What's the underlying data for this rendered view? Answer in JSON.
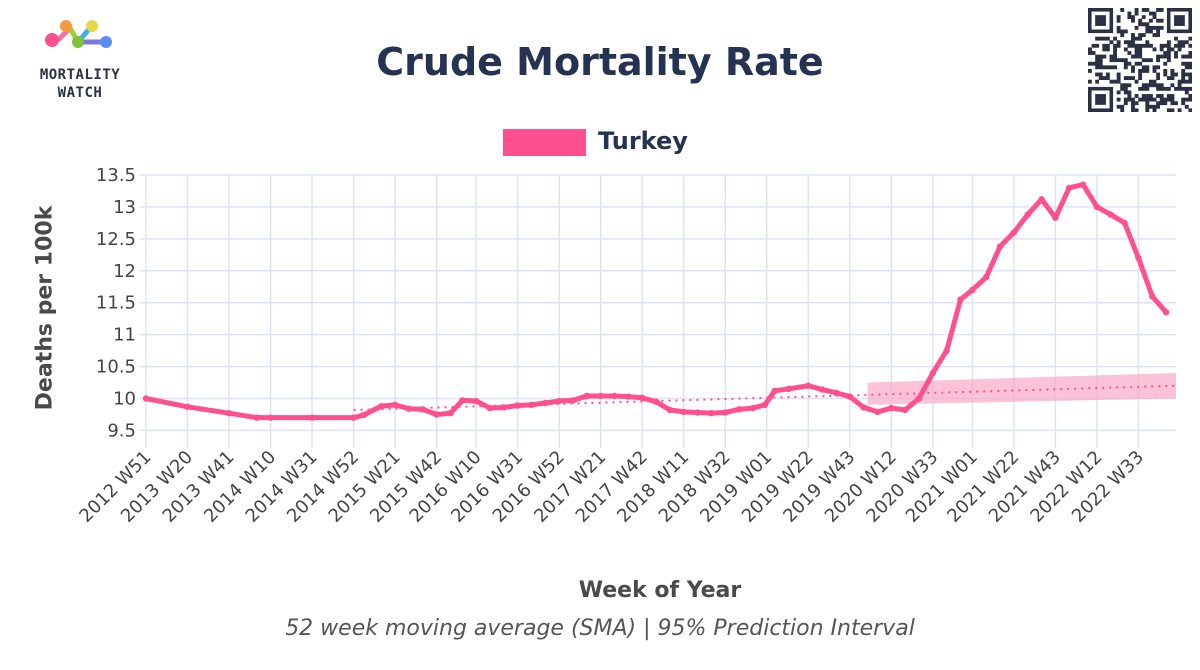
{
  "brand": {
    "logo_text_line1": "MORTALITY",
    "logo_text_line2": "WATCH"
  },
  "colors": {
    "series": "#ff4f8e",
    "band": "#f9a8c8",
    "grid": "#dde3f4",
    "title": "#253353"
  },
  "chart_data": {
    "type": "line",
    "title": "Crude Mortality Rate",
    "subtitle": "52 week moving average (SMA) | 95% Prediction Interval",
    "xlabel": "Week of Year",
    "ylabel": "Deaths per 100k",
    "ylim": [
      9.35,
      13.5
    ],
    "y_ticks": [
      "9.5",
      "10",
      "10.5",
      "11",
      "11.5",
      "12",
      "12.5",
      "13",
      "13.5"
    ],
    "y_tick_values": [
      9.5,
      10,
      10.5,
      11,
      11.5,
      12,
      12.5,
      13,
      13.5
    ],
    "x_ticks": [
      "2012 W51",
      "2013 W20",
      "2013 W41",
      "2014 W10",
      "2014 W31",
      "2014 W52",
      "2015 W21",
      "2015 W42",
      "2016 W10",
      "2016 W31",
      "2016 W52",
      "2017 W21",
      "2017 W42",
      "2018 W11",
      "2018 W32",
      "2019 W01",
      "2019 W22",
      "2019 W43",
      "2020 W12",
      "2020 W33",
      "2021 W01",
      "2021 W22",
      "2021 W43",
      "2022 W12",
      "2022 W33"
    ],
    "grid": true,
    "legend": {
      "position": "top-center",
      "entries": [
        "Turkey"
      ]
    },
    "series": [
      {
        "name": "Turkey",
        "x": [
          "2012 W51",
          "2013 W20",
          "2013 W41",
          "2014 W03",
          "2014 W10",
          "2014 W31",
          "2014 W52",
          "2015 W05",
          "2015 W14",
          "2015 W21",
          "2015 W28",
          "2015 W35",
          "2015 W42",
          "2015 W49",
          "2016 W03",
          "2016 W10",
          "2016 W17",
          "2016 W24",
          "2016 W31",
          "2016 W38",
          "2016 W45",
          "2016 W52",
          "2017 W07",
          "2017 W14",
          "2017 W21",
          "2017 W28",
          "2017 W35",
          "2017 W42",
          "2017 W49",
          "2018 W04",
          "2018 W11",
          "2018 W18",
          "2018 W25",
          "2018 W32",
          "2018 W39",
          "2018 W46",
          "2018 W52",
          "2019 W05",
          "2019 W12",
          "2019 W22",
          "2019 W29",
          "2019 W36",
          "2019 W43",
          "2019 W50",
          "2020 W05",
          "2020 W12",
          "2020 W19",
          "2020 W26",
          "2020 W33",
          "2020 W40",
          "2020 W47",
          "2021 W01",
          "2021 W08",
          "2021 W15",
          "2021 W22",
          "2021 W29",
          "2021 W36",
          "2021 W43",
          "2021 W50",
          "2022 W05",
          "2022 W12",
          "2022 W19",
          "2022 W26",
          "2022 W33",
          "2022 W40",
          "2022 W47"
        ],
        "values": [
          10.0,
          9.87,
          9.77,
          9.7,
          9.7,
          9.7,
          9.7,
          9.74,
          9.88,
          9.9,
          9.84,
          9.83,
          9.75,
          9.77,
          9.97,
          9.96,
          9.85,
          9.86,
          9.89,
          9.9,
          9.93,
          9.96,
          9.97,
          10.04,
          10.04,
          10.04,
          10.03,
          10.01,
          9.95,
          9.82,
          9.79,
          9.78,
          9.77,
          9.78,
          9.83,
          9.85,
          9.9,
          10.12,
          10.15,
          10.2,
          10.14,
          10.09,
          10.03,
          9.86,
          9.79,
          9.85,
          9.82,
          10.0,
          10.4,
          10.75,
          11.55,
          11.7,
          11.9,
          12.38,
          12.6,
          12.88,
          13.12,
          12.83,
          13.3,
          13.35,
          13.0,
          12.88,
          12.75,
          12.2,
          11.6,
          11.35
        ]
      },
      {
        "name": "",
        "style": "dotted",
        "x": [
          "2014 W52",
          "2022 W52"
        ],
        "values": [
          9.82,
          10.2
        ]
      }
    ],
    "prediction_interval": {
      "x": [
        "2019 W52",
        "2022 W52"
      ],
      "lower": [
        9.9,
        10.0
      ],
      "upper": [
        10.25,
        10.4
      ]
    }
  }
}
